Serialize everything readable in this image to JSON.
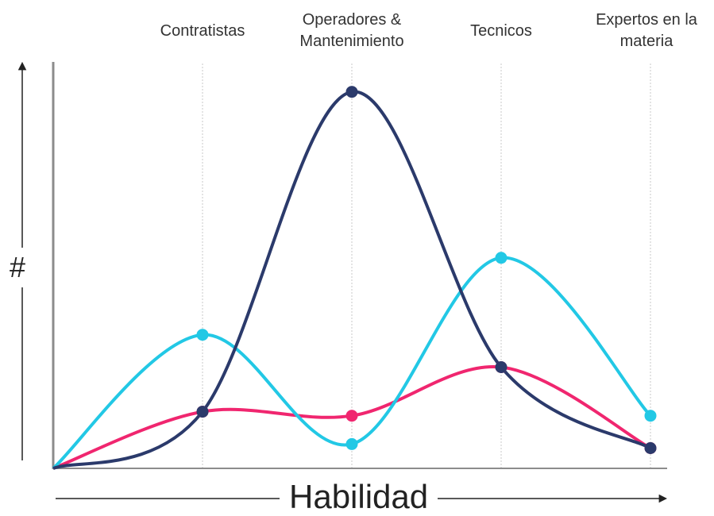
{
  "chart_data": {
    "type": "line",
    "categories": [
      null,
      "Contratistas",
      "Operadores & Mantenimiento",
      "Tecnicos",
      "Expertos en la materia"
    ],
    "x_label": "Habilidad",
    "y_label": "#",
    "ylim": [
      0,
      100
    ],
    "grid": true,
    "series": [
      {
        "color": "#f0266f",
        "values": [
          0,
          14,
          13,
          25,
          5
        ]
      },
      {
        "color": "#22c8e5",
        "values": [
          0,
          33,
          6,
          52,
          13
        ]
      },
      {
        "color": "#2b3a6b",
        "values": [
          0,
          14,
          93,
          25,
          5
        ]
      }
    ]
  }
}
